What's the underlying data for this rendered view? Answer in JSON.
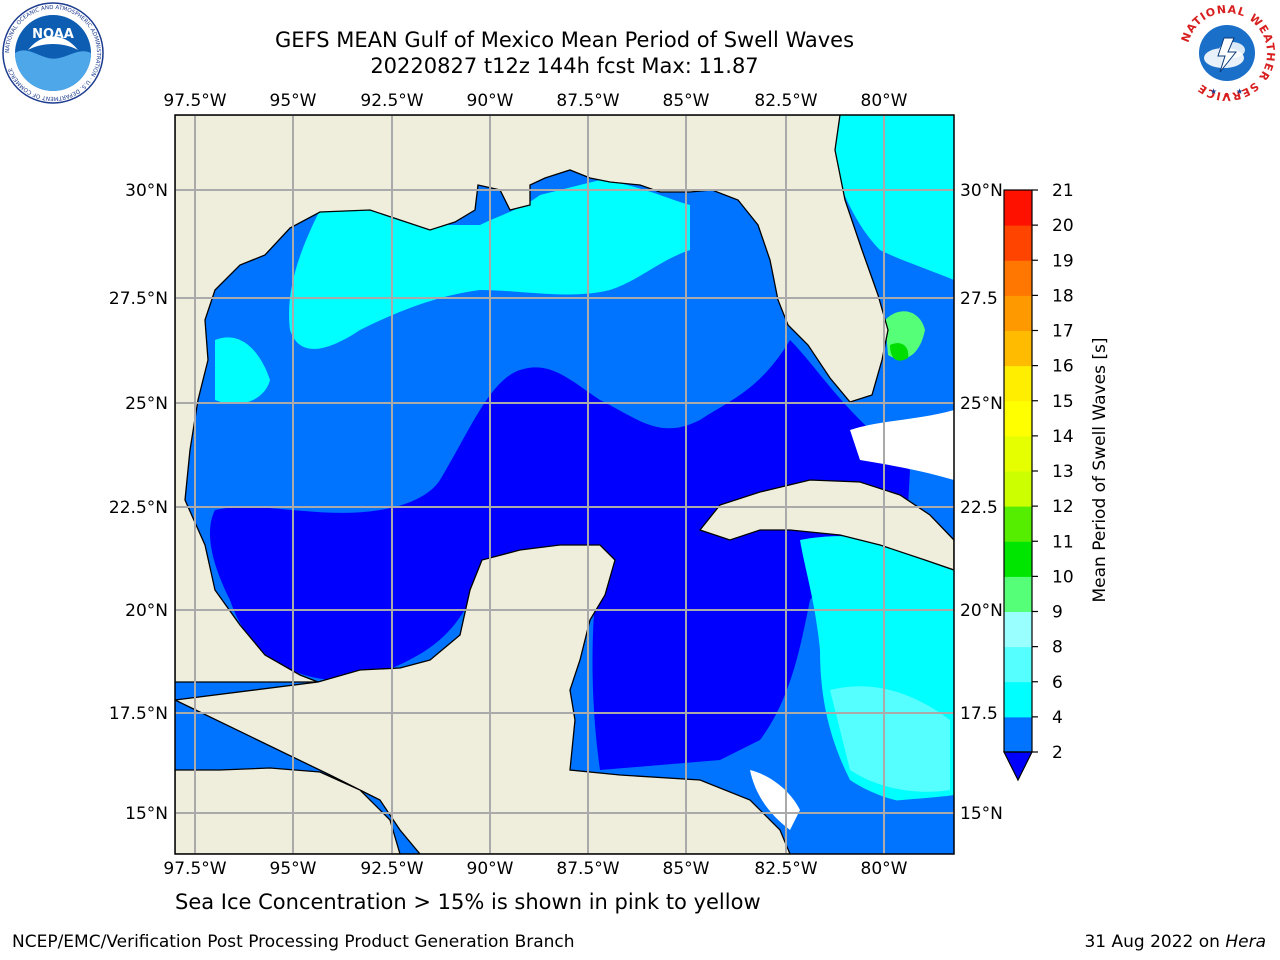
{
  "header": {
    "title_line1": "GEFS MEAN Gulf of Mexico Mean Period of Swell Waves",
    "title_line2": "20220827 t12z 144h fcst   Max: 11.87"
  },
  "logos": {
    "left": "NOAA",
    "left_ring_text": "NATIONAL OCEANIC AND ATMOSPHERIC ADMINISTRATION · U.S. DEPARTMENT OF COMMERCE",
    "right_ring_text": "NATIONAL WEATHER SERVICE"
  },
  "map": {
    "lon_labels": [
      "97.5°W",
      "95°W",
      "92.5°W",
      "90°W",
      "87.5°W",
      "85°W",
      "82.5°W",
      "80°W"
    ],
    "lat_labels_left": [
      "30°N",
      "27.5°N",
      "25°N",
      "22.5°N",
      "20°N",
      "17.5°N",
      "15°N"
    ],
    "lat_labels_right": [
      "30°N",
      "27.5",
      "25°N",
      "22.5",
      "20°N",
      "17.5",
      "15°N"
    ],
    "colors": {
      "land": "#efeedd",
      "ocean_2_4": "#0073ff",
      "ocean_0_2": "#0000ff",
      "ocean_4_6": "#00ffff",
      "ocean_6_8": "#55ffff",
      "ocean_9_10": "#55ff77",
      "ocean_10_11": "#00dd00"
    }
  },
  "colorbar": {
    "label": "Mean Period of Swell Waves [s]",
    "ticks": [
      "2",
      "4",
      "6",
      "8",
      "9",
      "10",
      "11",
      "12",
      "13",
      "14",
      "15",
      "16",
      "17",
      "18",
      "19",
      "20",
      "21"
    ],
    "colors": [
      "#0000ff",
      "#0073ff",
      "#00ffff",
      "#55ffff",
      "#99ffff",
      "#55ff77",
      "#00e600",
      "#55ee00",
      "#ccff00",
      "#e6ff00",
      "#ffff00",
      "#ffee00",
      "#ffbb00",
      "#ff9900",
      "#ff7700",
      "#ff4400",
      "#ff1100",
      "#ff0000"
    ]
  },
  "notes": {
    "sea_ice": "Sea Ice Concentration > 15% is shown in pink to yellow"
  },
  "footer": {
    "left": "NCEP/EMC/Verification Post Processing Product Generation Branch",
    "date": "31 Aug 2022 on ",
    "machine": "Hera"
  }
}
